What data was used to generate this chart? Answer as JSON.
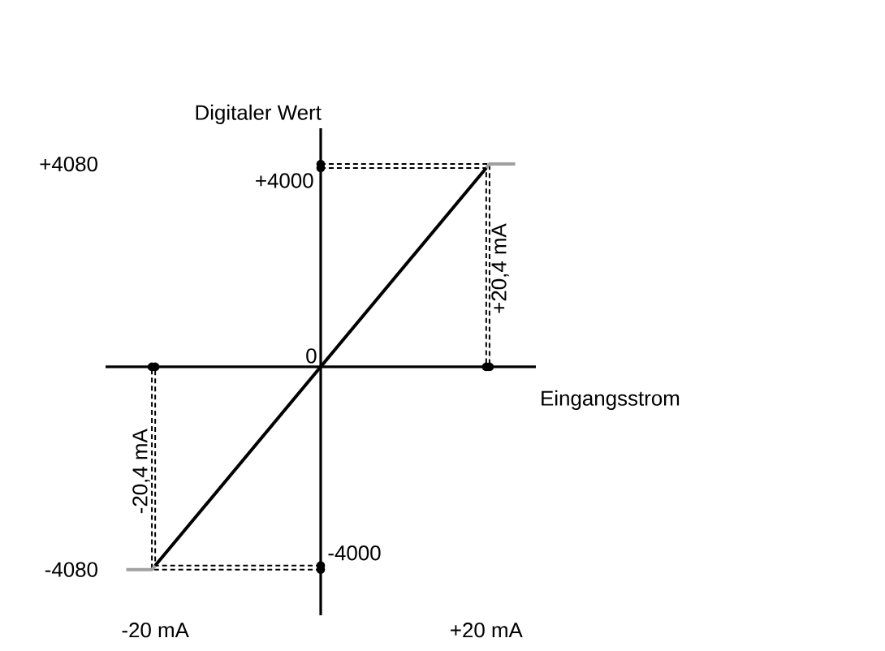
{
  "chart_data": {
    "type": "line",
    "xlabel": "Eingangsstrom",
    "ylabel": "Digitaler Wert",
    "xlim": [
      -26,
      26
    ],
    "ylim": [
      -5000,
      4800
    ],
    "xticks": [
      {
        "value": -20,
        "label": "-20 mA"
      },
      {
        "value": 20,
        "label": "+20 mA"
      }
    ],
    "yticks": [
      {
        "value": -4080,
        "label": "-4080"
      },
      {
        "value": 4080,
        "label": "+4080"
      }
    ],
    "series": [
      {
        "color": "#000000",
        "line_style": "dashed",
        "x": [
          0,
          20,
          20
        ],
        "values": [
          4000,
          4000,
          0
        ]
      },
      {
        "color": "#000000",
        "line_style": "dashed",
        "x": [
          0,
          20.4,
          20.4
        ],
        "values": [
          4080,
          4080,
          0
        ]
      },
      {
        "color": "#000000",
        "line_style": "dashed",
        "x": [
          0,
          -20,
          -20
        ],
        "values": [
          -4000,
          -4000,
          0
        ]
      },
      {
        "color": "#000000",
        "line_style": "dashed",
        "x": [
          0,
          -20.4,
          -20.4
        ],
        "values": [
          -4080,
          -4080,
          0
        ]
      },
      {
        "color": "#a0a0a0",
        "line_style": "solid",
        "x": [
          -23.5,
          -20.4,
          -20
        ],
        "values": [
          -4080,
          -4080,
          -4000
        ]
      },
      {
        "color": "#a0a0a0",
        "line_style": "solid",
        "x": [
          20,
          20.4,
          23.5
        ],
        "values": [
          4000,
          4080,
          4080
        ]
      },
      {
        "color": "#000000",
        "line_style": "solid",
        "x": [
          -20,
          20
        ],
        "values": [
          -4000,
          4000
        ]
      },
      {
        "type": "scatter",
        "color": "#000000",
        "marker": "circle",
        "x": [
          -20.4,
          -20,
          20,
          20.4,
          0,
          0,
          0,
          0
        ],
        "values": [
          0,
          0,
          0,
          0,
          4080,
          4000,
          -4000,
          -4080
        ]
      }
    ],
    "annotations": [
      {
        "text": "+4000",
        "x": 0,
        "y": 4000
      },
      {
        "text": "-4000",
        "x": 0,
        "y": -4000
      },
      {
        "text": "0",
        "x": 0,
        "y": 0
      },
      {
        "text": "+20,4 mA",
        "x": 20.4,
        "y": 2040
      },
      {
        "text": "-20,4 mA",
        "x": -20.4,
        "y": -2040
      }
    ]
  }
}
